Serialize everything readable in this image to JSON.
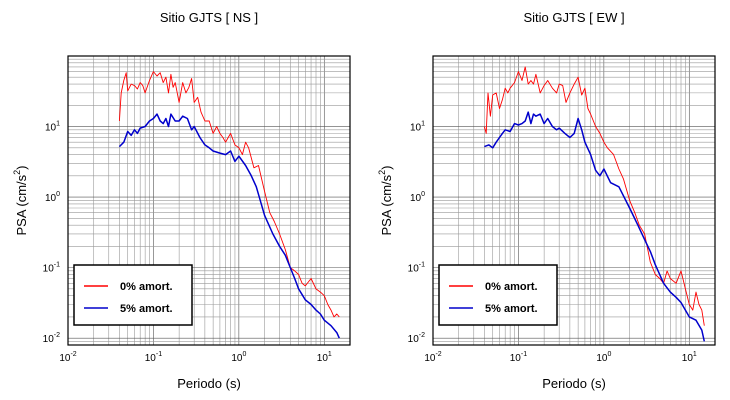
{
  "chart_data": [
    {
      "type": "line",
      "title": "Sitio GJTS [ NS ]",
      "xlabel": "Periodo (s)",
      "ylabel": "PSA (cm/s2)",
      "xscale": "log",
      "yscale": "log",
      "xlim": [
        0.01,
        20
      ],
      "ylim": [
        0.008,
        100
      ],
      "xticks": [
        {
          "base": "10",
          "exp": "-2",
          "v": 0.01
        },
        {
          "base": "10",
          "exp": "-1",
          "v": 0.1
        },
        {
          "base": "10",
          "exp": "0",
          "v": 1
        },
        {
          "base": "10",
          "exp": "1",
          "v": 10
        }
      ],
      "yticks": [
        {
          "base": "10",
          "exp": "-2",
          "v": 0.01
        },
        {
          "base": "10",
          "exp": "-1",
          "v": 0.1
        },
        {
          "base": "10",
          "exp": "0",
          "v": 1
        },
        {
          "base": "10",
          "exp": "1",
          "v": 10
        }
      ],
      "grid": true,
      "legend_position": "bottom-left",
      "series": [
        {
          "name": "0% amort.",
          "color": "#ff0000",
          "x": [
            0.04,
            0.042,
            0.045,
            0.048,
            0.05,
            0.055,
            0.06,
            0.065,
            0.07,
            0.075,
            0.08,
            0.09,
            0.1,
            0.11,
            0.12,
            0.13,
            0.14,
            0.15,
            0.16,
            0.17,
            0.18,
            0.2,
            0.22,
            0.24,
            0.26,
            0.28,
            0.3,
            0.33,
            0.36,
            0.4,
            0.45,
            0.5,
            0.55,
            0.6,
            0.65,
            0.7,
            0.75,
            0.8,
            0.9,
            1.0,
            1.1,
            1.2,
            1.3,
            1.5,
            1.7,
            2.0,
            2.3,
            2.6,
            3.0,
            3.5,
            4.0,
            4.5,
            5.0,
            5.5,
            6.0,
            7.0,
            8.0,
            9.0,
            10.0,
            11.0,
            12.0,
            13.0,
            14.0,
            15.0
          ],
          "y": [
            12,
            30,
            45,
            58,
            32,
            40,
            38,
            34,
            42,
            38,
            30,
            45,
            60,
            52,
            58,
            42,
            50,
            30,
            55,
            36,
            42,
            22,
            42,
            30,
            36,
            48,
            22,
            26,
            16,
            12,
            12,
            8,
            10,
            8,
            7,
            6,
            7,
            8,
            5.5,
            5,
            4,
            6,
            5,
            2.6,
            2.8,
            1.2,
            0.6,
            0.45,
            0.3,
            0.18,
            0.1,
            0.09,
            0.08,
            0.06,
            0.055,
            0.07,
            0.05,
            0.045,
            0.04,
            0.03,
            0.025,
            0.02,
            0.022,
            0.02
          ]
        },
        {
          "name": "5% amort.",
          "color": "#0000cc",
          "x": [
            0.04,
            0.045,
            0.05,
            0.055,
            0.06,
            0.065,
            0.07,
            0.08,
            0.09,
            0.1,
            0.11,
            0.12,
            0.13,
            0.14,
            0.15,
            0.16,
            0.18,
            0.2,
            0.22,
            0.25,
            0.28,
            0.3,
            0.35,
            0.4,
            0.45,
            0.5,
            0.6,
            0.7,
            0.8,
            0.9,
            1.0,
            1.2,
            1.4,
            1.6,
            2.0,
            2.5,
            3.0,
            3.5,
            4.0,
            4.5,
            5.0,
            6.0,
            7.0,
            8.0,
            9.0,
            10.0,
            12.0,
            14.0,
            15.0
          ],
          "y": [
            5.2,
            6,
            8.5,
            7.5,
            9,
            8,
            9.5,
            10,
            12,
            13,
            15,
            12,
            11,
            13,
            10,
            15,
            12,
            12,
            14,
            13,
            9,
            10,
            7,
            5.5,
            5,
            4.5,
            4.2,
            4,
            4.5,
            3.2,
            3.8,
            2.8,
            2,
            1.4,
            0.55,
            0.3,
            0.2,
            0.15,
            0.1,
            0.07,
            0.05,
            0.035,
            0.03,
            0.025,
            0.022,
            0.018,
            0.015,
            0.012,
            0.01
          ]
        }
      ]
    },
    {
      "type": "line",
      "title": "Sitio GJTS [ EW ]",
      "xlabel": "Periodo (s)",
      "ylabel": "PSA (cm/s2)",
      "xscale": "log",
      "yscale": "log",
      "xlim": [
        0.01,
        20
      ],
      "ylim": [
        0.008,
        100
      ],
      "xticks": [
        {
          "base": "10",
          "exp": "-2",
          "v": 0.01
        },
        {
          "base": "10",
          "exp": "-1",
          "v": 0.1
        },
        {
          "base": "10",
          "exp": "0",
          "v": 1
        },
        {
          "base": "10",
          "exp": "1",
          "v": 10
        }
      ],
      "yticks": [
        {
          "base": "10",
          "exp": "-2",
          "v": 0.01
        },
        {
          "base": "10",
          "exp": "-1",
          "v": 0.1
        },
        {
          "base": "10",
          "exp": "0",
          "v": 1
        },
        {
          "base": "10",
          "exp": "1",
          "v": 10
        }
      ],
      "grid": true,
      "legend_position": "bottom-left",
      "series": [
        {
          "name": "0% amort.",
          "color": "#ff0000",
          "x": [
            0.04,
            0.042,
            0.044,
            0.047,
            0.05,
            0.055,
            0.06,
            0.065,
            0.07,
            0.075,
            0.08,
            0.09,
            0.1,
            0.11,
            0.12,
            0.13,
            0.14,
            0.15,
            0.16,
            0.18,
            0.2,
            0.22,
            0.25,
            0.28,
            0.3,
            0.33,
            0.36,
            0.4,
            0.45,
            0.5,
            0.55,
            0.6,
            0.65,
            0.7,
            0.8,
            0.9,
            1.0,
            1.1,
            1.3,
            1.5,
            1.7,
            2.0,
            2.3,
            2.6,
            3.0,
            3.5,
            4.0,
            4.5,
            5.0,
            5.5,
            6.0,
            7.0,
            8.0,
            9.0,
            10.0,
            11.0,
            12.0,
            13.0,
            14.0,
            15.0
          ],
          "y": [
            10,
            8,
            30,
            14,
            28,
            30,
            18,
            24,
            35,
            30,
            35,
            42,
            60,
            45,
            70,
            40,
            45,
            40,
            55,
            30,
            38,
            45,
            35,
            30,
            40,
            38,
            22,
            30,
            40,
            50,
            28,
            35,
            18,
            15,
            10,
            8,
            6,
            5,
            4,
            2.5,
            1.8,
            0.9,
            0.6,
            0.4,
            0.3,
            0.12,
            0.08,
            0.07,
            0.06,
            0.09,
            0.07,
            0.06,
            0.09,
            0.05,
            0.03,
            0.025,
            0.045,
            0.03,
            0.025,
            0.015
          ]
        },
        {
          "name": "5% amort.",
          "color": "#0000cc",
          "x": [
            0.04,
            0.045,
            0.05,
            0.055,
            0.06,
            0.065,
            0.07,
            0.08,
            0.09,
            0.1,
            0.11,
            0.12,
            0.13,
            0.14,
            0.15,
            0.16,
            0.18,
            0.2,
            0.22,
            0.25,
            0.28,
            0.3,
            0.35,
            0.4,
            0.45,
            0.5,
            0.55,
            0.6,
            0.7,
            0.8,
            0.9,
            1.0,
            1.2,
            1.5,
            2.0,
            2.5,
            3.0,
            3.5,
            4.0,
            5.0,
            6.0,
            7.0,
            8.0,
            9.0,
            10.0,
            12.0,
            14.0,
            15.0
          ],
          "y": [
            5.2,
            5.5,
            5,
            6,
            7,
            8,
            9,
            8.5,
            11,
            10.5,
            11,
            12,
            16,
            11,
            15,
            14,
            15,
            11,
            13,
            10,
            9,
            9.5,
            8,
            7,
            8,
            13,
            9,
            6,
            4,
            2.4,
            2,
            2.5,
            1.6,
            1.4,
            0.7,
            0.4,
            0.25,
            0.17,
            0.11,
            0.06,
            0.045,
            0.038,
            0.032,
            0.025,
            0.02,
            0.018,
            0.013,
            0.009
          ]
        }
      ]
    }
  ]
}
